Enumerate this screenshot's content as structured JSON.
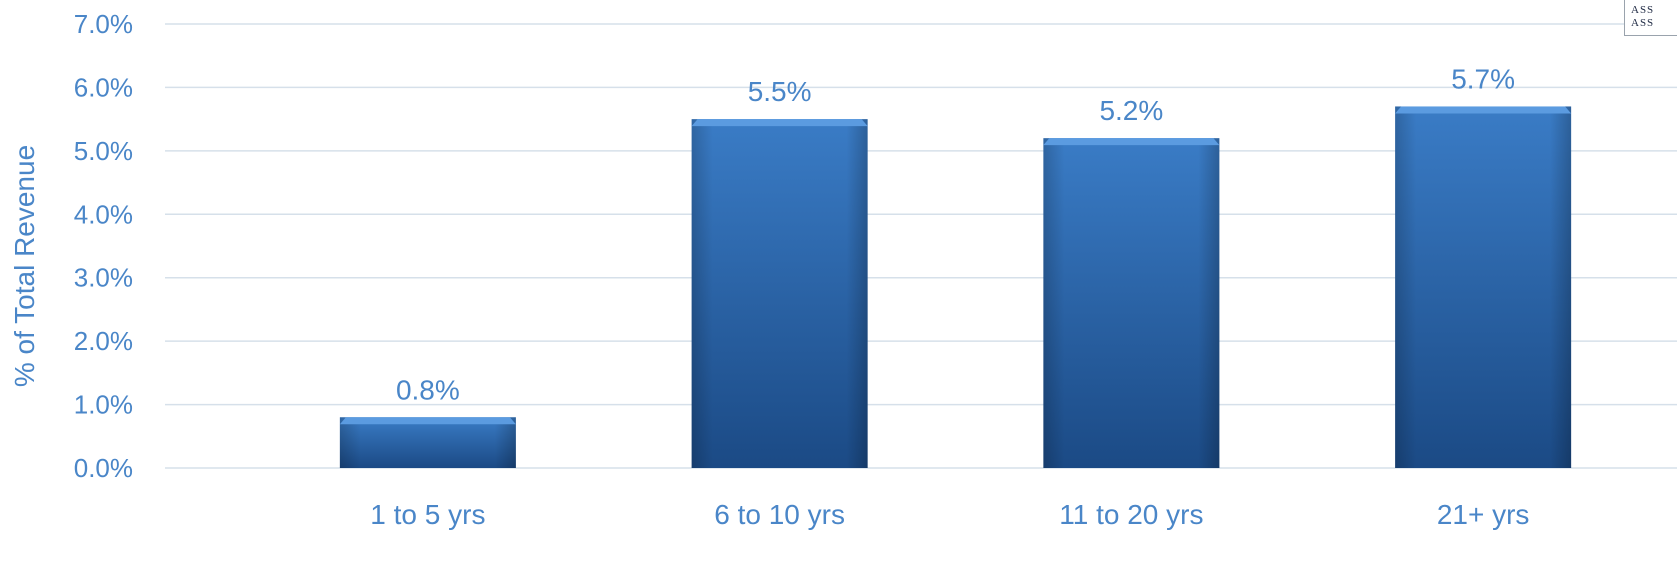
{
  "chart_data": {
    "type": "bar",
    "title": "",
    "xlabel": "",
    "ylabel": "% of Total Revenue",
    "categories": [
      "1 to 5 yrs",
      "6 to 10 yrs",
      "11 to 20 yrs",
      "21+ yrs"
    ],
    "values": [
      0.8,
      5.5,
      5.2,
      5.7
    ],
    "data_labels": [
      "0.8%",
      "5.5%",
      "5.2%",
      "5.7%"
    ],
    "ylim": [
      0,
      7
    ],
    "yticks": [
      0,
      1,
      2,
      3,
      4,
      5,
      6,
      7
    ],
    "ytick_labels": [
      "0.0%",
      "1.0%",
      "2.0%",
      "3.0%",
      "4.0%",
      "5.0%",
      "6.0%",
      "7.0%"
    ],
    "grid": true,
    "legend": "none",
    "colors": {
      "bar_top": "#3a7cc6",
      "bar_bottom": "#1b4a85",
      "bar_cap": "#5b9be0",
      "text": "#4a86c8",
      "grid": "#d6e0ea"
    }
  },
  "logo": {
    "line1": "ASS",
    "line2": "ASS"
  }
}
